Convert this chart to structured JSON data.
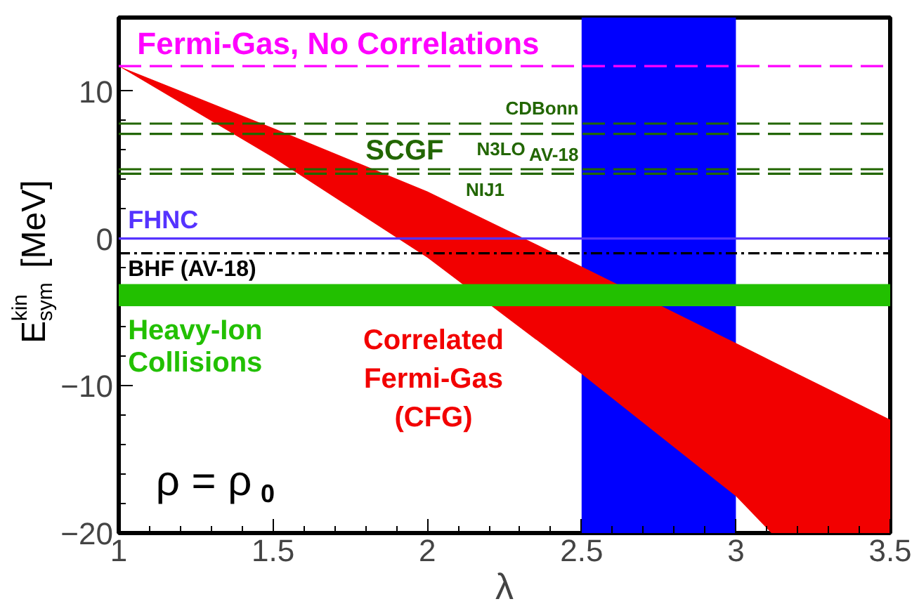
{
  "chart_data": {
    "type": "area",
    "xlabel": "λ",
    "ylabel": "E$^{kin}$$_{sym}$ [MeV]",
    "xlim": [
      1,
      3.5
    ],
    "xticks": [
      1,
      1.5,
      2,
      2.5,
      3,
      3.5
    ],
    "ylim": [
      -20,
      15
    ],
    "yticks": [
      -20,
      -10,
      0,
      10
    ],
    "grid": false,
    "legend": false,
    "series": [
      {
        "name": "Correlated\nFermi-Gas\n(CFG)",
        "color": "#f20000",
        "x": [
          1,
          1.5,
          2,
          2.5,
          3,
          3.115,
          3.5
        ],
        "values": [
          null,
          null,
          null,
          null,
          null,
          null,
          null
        ],
        "upper": [
          11.7,
          7.5,
          3.2,
          -1.9,
          -7.1,
          -8.3,
          -12.3
        ],
        "lower": [
          11.7,
          5.5,
          -1.3,
          -9.2,
          -17.5,
          -20,
          -20
        ]
      }
    ],
    "bands": [
      {
        "axis": "x",
        "from": 2.5,
        "to": 3,
        "color": "#0000ff"
      },
      {
        "axis": "y",
        "from": -4.6,
        "to": -3.1,
        "color": "#22c000",
        "label": "Heavy-Ion\nCollisions"
      }
    ],
    "ref_lines": [
      {
        "axis": "y",
        "value": 11.7,
        "label": "Fermi-Gas, No Correlations",
        "color": "#ff00ff",
        "line_style": "dashed"
      },
      {
        "axis": "y",
        "value": 7.8,
        "label": "CDBonn",
        "color": "#226600",
        "line_style": "dashed"
      },
      {
        "axis": "y",
        "value": 7.1,
        "label": "N3LO",
        "color": "#226600",
        "line_style": "dashed"
      },
      {
        "axis": "y",
        "value": 4.7,
        "label": "AV-18",
        "color": "#226600",
        "line_style": "dashed"
      },
      {
        "axis": "y",
        "value": 4.4,
        "label": "NIJ1",
        "color": "#226600",
        "line_style": "dashed"
      },
      {
        "axis": "y",
        "value": 0,
        "label": "FHNC",
        "color": "#5533ff",
        "line_style": "solid"
      },
      {
        "axis": "y",
        "value": -1.0,
        "label": "BHF (AV-18)",
        "color": "#000000",
        "line_style": "dashdot"
      }
    ],
    "annotations": [
      "SCGF",
      "ρ = ρ$_{0}$"
    ]
  }
}
